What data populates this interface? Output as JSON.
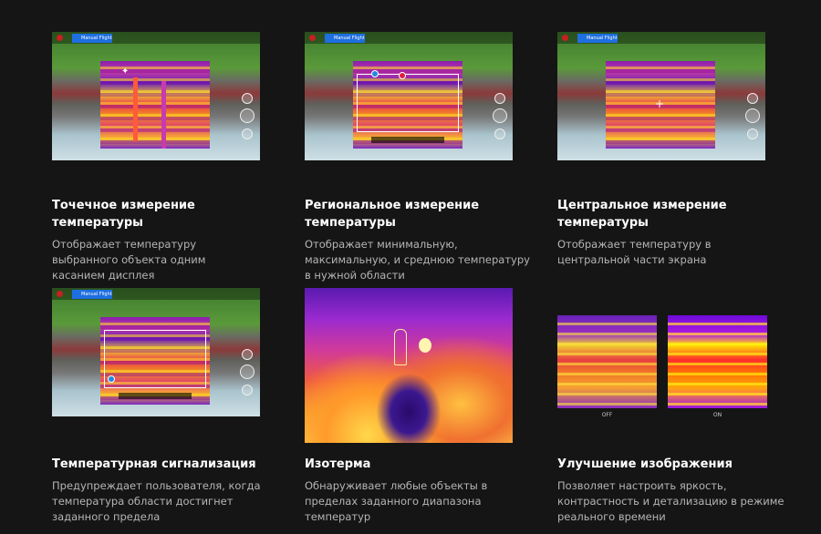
{
  "overlay": {
    "flight_mode": "Manual Flight"
  },
  "features": [
    {
      "title": "Точечное измерение температуры",
      "desc": "Отображает температуру выбранного объекта одним касанием дисплея"
    },
    {
      "title": "Региональное измерение температуры",
      "desc": "Отображает минимальную, максимальную, и среднюю температуру в нужной области"
    },
    {
      "title": "Центральное измерение температуры",
      "desc": "Отображает температуру в центральной части экрана"
    },
    {
      "title": "Температурная сигнализация",
      "desc": "Предупреждает пользователя, когда температура области достигнет заданного предела"
    },
    {
      "title": "Изотерма",
      "desc": "Обнаруживает любые объекты в пределах заданного диапазона температур"
    },
    {
      "title": "Улучшение изображения",
      "desc": "Позволяет настроить яркость, контрастность и детализацию в режиме реального времени"
    }
  ],
  "enhancement": {
    "off_label": "OFF",
    "on_label": "ON"
  },
  "colors": {
    "background": "#151515",
    "mode_badge": "#1e6fe0",
    "marker_min": "#1e8ae0",
    "marker_max": "#e02040"
  }
}
